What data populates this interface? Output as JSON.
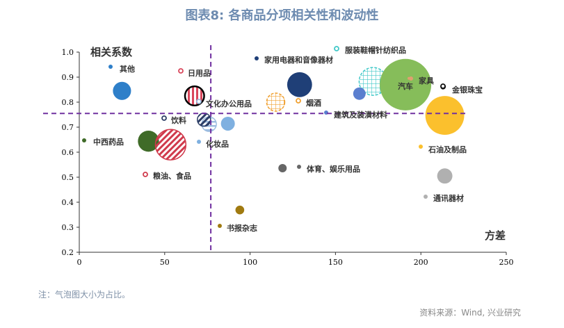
{
  "title": "图表8:  各商品分项相关性和波动性",
  "note": "注：气泡图大小为占比。",
  "source": "资料来源：Wind, 兴业研究",
  "chart_data": {
    "type": "bubble",
    "xlabel": "方差",
    "ylabel": "相关系数",
    "xlim": [
      0,
      250
    ],
    "ylim": [
      0.2,
      1.0
    ],
    "xticks": [
      "0",
      "50",
      "100",
      "150",
      "200",
      "250"
    ],
    "yticks": [
      "0.2",
      "0.3",
      "0.4",
      "0.5",
      "0.6",
      "0.7",
      "0.8",
      "0.9",
      "1.0"
    ],
    "reference_lines": {
      "x": 77,
      "y": 0.755,
      "color": "#7030a0"
    },
    "series": [
      {
        "name": "其他",
        "x": 25,
        "y": 0.845,
        "size": 170,
        "color": "#2e7fc9",
        "pattern": "solid"
      },
      {
        "name": "日用品",
        "x": 67.5,
        "y": 0.825,
        "size": 190,
        "color": "#d9475c",
        "pattern": "vstripe-ring"
      },
      {
        "name": "家用电器和音像器材",
        "x": 129,
        "y": 0.87,
        "size": 320,
        "color": "#1f3f77",
        "pattern": "solid"
      },
      {
        "name": "烟酒",
        "x": 115,
        "y": 0.8,
        "size": 170,
        "color": "#f0a030",
        "pattern": "grid"
      },
      {
        "name": "服装鞋帽针纺织品",
        "x": 172,
        "y": 0.883,
        "size": 400,
        "color": "#40c8c8",
        "pattern": "grid"
      },
      {
        "name": "汽车",
        "x": 191,
        "y": 0.87,
        "size": 1370,
        "color": "#86bd5a",
        "pattern": "solid"
      },
      {
        "name": "家具",
        "x": 193,
        "y": 0.895,
        "size": 4,
        "color": "#e0a070",
        "pattern": "solid"
      },
      {
        "name": "建筑及装潢材料",
        "x": 164,
        "y": 0.834,
        "size": 80,
        "color": "#5b7fcf",
        "pattern": "solid"
      },
      {
        "name": "金银珠宝",
        "x": 213,
        "y": 0.862,
        "size": 6,
        "color": "#111111",
        "pattern": "ring"
      },
      {
        "name": "石油及制品",
        "x": 214,
        "y": 0.747,
        "size": 780,
        "color": "#fbc02d",
        "pattern": "solid"
      },
      {
        "name": "通讯器材",
        "x": 214,
        "y": 0.505,
        "size": 120,
        "color": "#b0b0b0",
        "pattern": "solid"
      },
      {
        "name": "体育、娱乐用品",
        "x": 119,
        "y": 0.536,
        "size": 36,
        "color": "#666666",
        "pattern": "solid"
      },
      {
        "name": "书报杂志",
        "x": 94,
        "y": 0.369,
        "size": 40,
        "color": "#a07a10",
        "pattern": "solid"
      },
      {
        "name": "化妆品",
        "x": 87,
        "y": 0.714,
        "size": 100,
        "color": "#7fb0e0",
        "pattern": "solid"
      },
      {
        "name": "文化办公用品",
        "x": 76,
        "y": 0.712,
        "size": 110,
        "color": "#9dbde0",
        "pattern": "hstripe"
      },
      {
        "name": "饮料",
        "x": 73,
        "y": 0.73,
        "size": 90,
        "color": "#2c3e66",
        "pattern": "dstripe"
      },
      {
        "name": "中西药品",
        "x": 40.5,
        "y": 0.644,
        "size": 230,
        "color": "#3f6b28",
        "pattern": "solid"
      },
      {
        "name": "粮油、食品",
        "x": 53.5,
        "y": 0.63,
        "size": 480,
        "color": "#d03a4c",
        "pattern": "dstripe"
      }
    ]
  }
}
